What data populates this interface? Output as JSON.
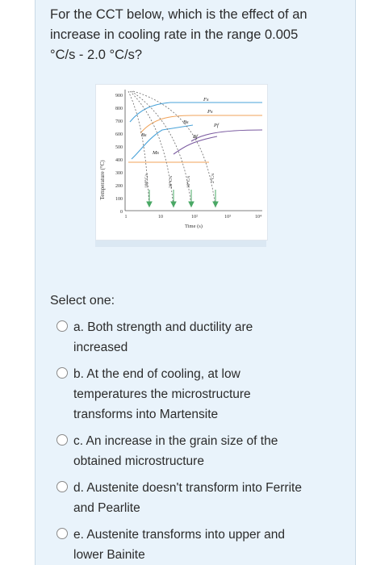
{
  "question": {
    "text": "For the CCT below, which is the effect of an increase in cooling rate in the range 0.005 °C/s - 2.0 °C/s?"
  },
  "figure": {
    "ylabel": "Temperature (°C)",
    "xlabel": "Time (s)",
    "yticks": [
      "900",
      "800",
      "700",
      "600",
      "500",
      "400",
      "300",
      "200",
      "100",
      "0"
    ],
    "xticks": [
      "1",
      "10",
      "10²",
      "10³",
      "10⁴"
    ],
    "curve_labels": {
      "fs": "Fs",
      "ps": "Ps",
      "pf": "Pf",
      "bs1": "Bs",
      "bs2": "Bs",
      "bf": "Bf",
      "ms": "Ms"
    },
    "rate_labels": [
      "100°C/s",
      "20°C/s",
      "10°C/s",
      "2°C/s"
    ],
    "colors": {
      "blue": "#4aa3d9",
      "orange": "#f0a35a",
      "purple": "#7a5aa0",
      "green": "#4aa865",
      "dashed": "#6a6a6a"
    }
  },
  "select_label": "Select one:",
  "options": [
    {
      "text": "a. Both strength and ductility are increased"
    },
    {
      "text": "b. At the end of cooling, at low temperatures the microstructure transforms into Martensite"
    },
    {
      "text": "c. An increase in the grain size of the obtained microstructure"
    },
    {
      "text": "d. Austenite doesn't transform into Ferrite and Pearlite"
    },
    {
      "text": "e. Austenite transforms into upper and lower Bainite"
    }
  ]
}
